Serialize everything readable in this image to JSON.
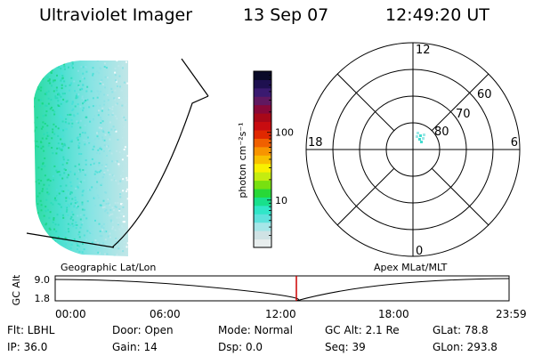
{
  "header": {
    "instrument": "Ultraviolet Imager",
    "date": "13 Sep 07",
    "time": "12:49:20 UT"
  },
  "colorbar": {
    "label": "photon cm⁻²s⁻¹",
    "scale": "log",
    "range": [
      2,
      800
    ],
    "tick_labels": [
      "100",
      "10"
    ],
    "colors": [
      "#e8eeee",
      "#cfe2e4",
      "#a6e6e8",
      "#5ee2dc",
      "#30e6c8",
      "#18e08c",
      "#28d838",
      "#78e010",
      "#c4ec10",
      "#f8f000",
      "#f8c000",
      "#f89400",
      "#f06000",
      "#e02800",
      "#c80c10",
      "#a80818",
      "#880838",
      "#601860",
      "#3a1a70",
      "#1e1050",
      "#0a0a28"
    ]
  },
  "polar": {
    "lat_labels": [
      "60",
      "70",
      "80"
    ],
    "mlt_labels": [
      "12",
      "18",
      "6",
      "0"
    ]
  },
  "timeline": {
    "left_label": "Geographic Lat/Lon",
    "right_label": "Apex MLat/MLT",
    "axis_title": "GC Alt",
    "y_labels": [
      "9.0",
      "1.8"
    ],
    "x_labels": [
      "00:00",
      "06:00",
      "12:00",
      "18:00",
      "23:59"
    ],
    "marker_color": "#cc0000"
  },
  "info": {
    "flt": "Flt: LBHL",
    "door": "Door: Open",
    "mode": "Mode: Normal",
    "gc_alt": "GC Alt: 2.1 Re",
    "glat": "GLat:  78.8",
    "ip": "IP: 36.0",
    "gain": "Gain: 14",
    "dsp": "Dsp:    0.0",
    "seq": "Seq: 39",
    "glon": "GLon: 293.8"
  }
}
